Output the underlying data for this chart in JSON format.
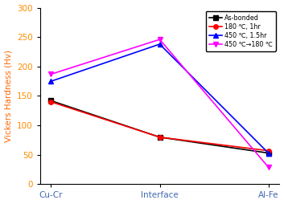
{
  "categories": [
    "Cu-Cr",
    "Interface",
    "Al-Fe"
  ],
  "series": [
    {
      "label": "As-bonded",
      "values": [
        142,
        80,
        53
      ],
      "color": "#000000",
      "marker": "s",
      "markersize": 4,
      "linewidth": 1.2
    },
    {
      "label": "180 ℃, 1hr",
      "values": [
        140,
        80,
        57
      ],
      "color": "#ff0000",
      "marker": "o",
      "markersize": 4,
      "linewidth": 1.2
    },
    {
      "label": "450 ℃, 1.5hr",
      "values": [
        175,
        238,
        53
      ],
      "color": "#0000ff",
      "marker": "^",
      "markersize": 4,
      "linewidth": 1.2
    },
    {
      "label": "450 ℃→180 ℃",
      "values": [
        187,
        246,
        29
      ],
      "color": "#ff00ff",
      "marker": "v",
      "markersize": 4,
      "linewidth": 1.2
    }
  ],
  "ylabel": "Vickers Hardness (Hv)",
  "ylim": [
    0,
    300
  ],
  "yticks": [
    0,
    50,
    100,
    150,
    200,
    250,
    300
  ],
  "legend_loc": "upper right",
  "xlabel_color": "#4169b0",
  "ytick_color": "#ff8c00",
  "ylabel_color": "#ff6600",
  "axis_color": "#000000",
  "figsize": [
    3.53,
    2.54
  ],
  "dpi": 100
}
